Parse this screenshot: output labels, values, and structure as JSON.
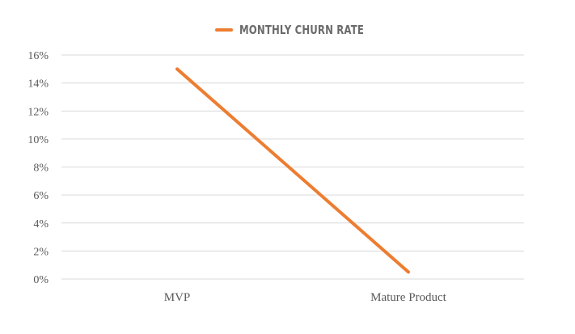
{
  "chart_data": {
    "type": "line",
    "categories": [
      "MVP",
      "Mature Product"
    ],
    "series": [
      {
        "name": "MONTHLY CHURN RATE",
        "values": [
          15,
          0.5
        ],
        "color": "#ED7D31"
      }
    ],
    "ylim": [
      0,
      16
    ],
    "yticks": [
      0,
      2,
      4,
      6,
      8,
      10,
      12,
      14,
      16
    ],
    "ytick_format": "percent",
    "grid": true,
    "legend_position": "top"
  }
}
